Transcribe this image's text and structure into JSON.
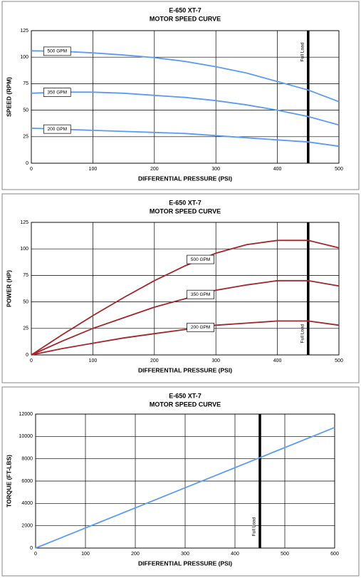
{
  "chart_data": [
    {
      "type": "line",
      "title": "E-650 XT-7",
      "subtitle": "MOTOR SPEED CURVE",
      "x_label": "DIFFERENTIAL PRESSURE (PSI)",
      "y_label": "SPEED (RPM)",
      "x": [
        0,
        50,
        100,
        150,
        200,
        250,
        300,
        350,
        400,
        450,
        500
      ],
      "series": [
        {
          "name": "500 GPM",
          "color": "#5b9cf2",
          "values": [
            106,
            105.5,
            104,
            102,
            99.5,
            96,
            91,
            85,
            77,
            69,
            58
          ]
        },
        {
          "name": "350 GPM",
          "color": "#5b9cf2",
          "values": [
            66,
            67,
            67,
            66,
            64,
            62,
            59,
            55,
            50,
            44,
            36
          ]
        },
        {
          "name": "200 GPM",
          "color": "#5b9cf2",
          "values": [
            33,
            32,
            31,
            30,
            29,
            28,
            26,
            24,
            22,
            20,
            16
          ]
        }
      ],
      "xlim": [
        0,
        500
      ],
      "xticks": [
        0,
        100,
        200,
        300,
        400,
        500
      ],
      "ylim": [
        0,
        125
      ],
      "yticks": [
        0,
        25,
        50,
        75,
        100,
        125
      ],
      "grid": true,
      "annotation": {
        "text": "Full Load",
        "x": 450
      }
    },
    {
      "type": "line",
      "title": "E-650 XT-7",
      "subtitle": "MOTOR SPEED CURVE",
      "x_label": "DIFFERENTIAL PRESSURE (PSI)",
      "y_label": "POWER (HP)",
      "x": [
        0,
        50,
        100,
        150,
        200,
        250,
        300,
        350,
        400,
        450,
        500
      ],
      "series": [
        {
          "name": "500 GPM",
          "color": "#a3262a",
          "values": [
            0,
            19,
            37,
            54,
            70,
            84,
            96,
            104,
            108,
            108,
            101
          ]
        },
        {
          "name": "350 GPM",
          "color": "#a3262a",
          "values": [
            0,
            13,
            25,
            35,
            45,
            53,
            61,
            66,
            70,
            70,
            65
          ]
        },
        {
          "name": "200 GPM",
          "color": "#a3262a",
          "values": [
            0,
            6,
            11,
            16,
            20,
            24,
            28,
            30,
            32,
            32,
            28
          ]
        }
      ],
      "xlim": [
        0,
        500
      ],
      "xticks": [
        0,
        100,
        200,
        300,
        400,
        500
      ],
      "ylim": [
        0,
        125
      ],
      "yticks": [
        0,
        25,
        50,
        75,
        100,
        125
      ],
      "grid": true,
      "annotation": {
        "text": "Full Load",
        "x": 450
      }
    },
    {
      "type": "line",
      "title": "E-650 XT-7",
      "subtitle": "MOTOR SPEED CURVE",
      "x_label": "DIFFERENTIAL PRESSURE (PSI)",
      "y_label": "TORQUE (FT-LBS)",
      "x": [
        0,
        600
      ],
      "series": [
        {
          "color": "#5b9cf2",
          "values": [
            0,
            10800
          ]
        }
      ],
      "xlim": [
        0,
        600
      ],
      "xticks": [
        0,
        100,
        200,
        300,
        400,
        500,
        600
      ],
      "ylim": [
        0,
        12000
      ],
      "yticks": [
        0,
        2000,
        4000,
        6000,
        8000,
        10000,
        12000
      ],
      "grid": true,
      "annotation": {
        "text": "Full Load",
        "x": 450
      }
    }
  ]
}
